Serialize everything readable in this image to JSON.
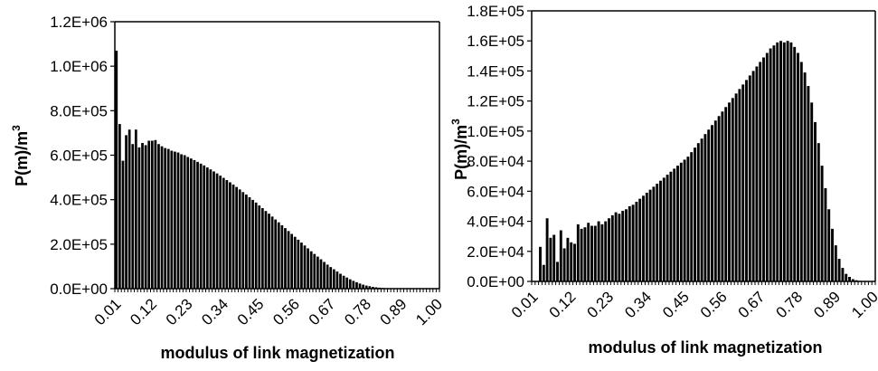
{
  "chart_data": [
    {
      "type": "bar",
      "xlabel": "modulus of link magnetization",
      "ylabel": "P(m)/m",
      "ylabel_superscript": "3",
      "ylim": [
        0,
        1200000
      ],
      "yticks": [
        0,
        200000,
        400000,
        600000,
        800000,
        1000000,
        1200000
      ],
      "ytick_labels": [
        "0.0E+00",
        "2.0E+05",
        "4.0E+05",
        "6.0E+05",
        "8.0E+05",
        "1.0E+06",
        "1.2E+06"
      ],
      "xtick_labels": [
        "0.01",
        "0.12",
        "0.23",
        "0.34",
        "0.45",
        "0.56",
        "0.67",
        "0.78",
        "0.89",
        "1.00"
      ],
      "x_start": 0.01,
      "x_step": 0.01,
      "bar_color": "#000000",
      "values": [
        1070000,
        740000,
        575000,
        690000,
        715000,
        650000,
        715000,
        635000,
        655000,
        645000,
        665000,
        665000,
        668000,
        650000,
        640000,
        632000,
        628000,
        620000,
        616000,
        612000,
        604000,
        600000,
        592000,
        585000,
        578000,
        570000,
        562000,
        554000,
        545000,
        536000,
        527000,
        518000,
        508000,
        498000,
        488000,
        478000,
        468000,
        457000,
        446000,
        434000,
        423000,
        411000,
        399000,
        387000,
        374000,
        362000,
        349000,
        337000,
        324000,
        311000,
        298000,
        285000,
        272000,
        259000,
        246000,
        233000,
        220000,
        207000,
        194000,
        181000,
        168000,
        156000,
        144000,
        132000,
        120000,
        108000,
        97000,
        87000,
        77000,
        67000,
        58000,
        50000,
        42000,
        35000,
        29000,
        23000,
        18000,
        14000,
        11000,
        8000,
        6000,
        4500,
        3200,
        2200,
        1500,
        1000,
        700,
        500,
        300,
        200,
        150,
        100,
        80,
        60,
        40,
        30,
        20,
        10,
        5,
        2
      ]
    },
    {
      "type": "bar",
      "xlabel": "modulus of link magnetization",
      "ylabel": "P(m)/m",
      "ylabel_superscript": "3",
      "ylim": [
        0,
        180000
      ],
      "yticks": [
        0,
        20000,
        40000,
        60000,
        80000,
        100000,
        120000,
        140000,
        160000,
        180000
      ],
      "ytick_labels": [
        "0.0E+00",
        "2.0E+04",
        "4.0E+04",
        "6.0E+04",
        "8.0E+04",
        "1.0E+05",
        "1.2E+05",
        "1.4E+05",
        "1.6E+05",
        "1.8E+05"
      ],
      "xtick_labels": [
        "0.01",
        "0.12",
        "0.23",
        "0.34",
        "0.45",
        "0.56",
        "0.67",
        "0.78",
        "0.89",
        "1.00"
      ],
      "x_start": 0.01,
      "x_step": 0.01,
      "bar_color": "#000000",
      "values": [
        0,
        0,
        23000,
        11000,
        42000,
        29000,
        31000,
        13000,
        34000,
        22000,
        29000,
        26000,
        25000,
        38000,
        35000,
        36000,
        39000,
        37000,
        37000,
        40000,
        38000,
        40000,
        42000,
        44000,
        46000,
        45000,
        47000,
        48000,
        50000,
        51000,
        53000,
        55000,
        57000,
        59000,
        61000,
        63000,
        65000,
        67000,
        69000,
        71000,
        73000,
        75000,
        77000,
        79000,
        81000,
        83000,
        86000,
        89000,
        92000,
        95000,
        98000,
        101000,
        104000,
        107000,
        110000,
        113000,
        116000,
        119000,
        122000,
        125000,
        128000,
        131000,
        134000,
        137000,
        140000,
        143000,
        146000,
        149000,
        152000,
        155000,
        157000,
        159000,
        160000,
        159000,
        160000,
        159000,
        156000,
        152000,
        146000,
        139000,
        130000,
        119000,
        106000,
        92000,
        77000,
        62000,
        48000,
        35000,
        24000,
        15000,
        9000,
        5000,
        3000,
        1500,
        800,
        400,
        200,
        100,
        50,
        20
      ]
    }
  ]
}
